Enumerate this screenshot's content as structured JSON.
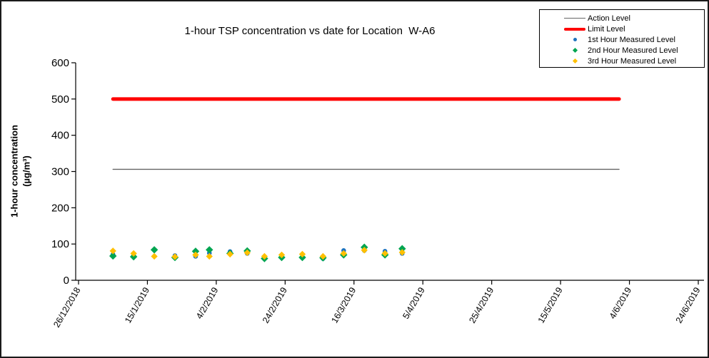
{
  "chart_data": {
    "type": "scatter",
    "title": "1-hour TSP concentration vs date for Location  W-A6",
    "xlabel": "",
    "ylabel": "1-hour concentration (µg/m³)",
    "ylabel_line1": "1-hour concentration",
    "ylabel_line2": "(µg/m³)",
    "ylim": [
      0,
      600
    ],
    "y_ticks": [
      0,
      100,
      200,
      300,
      400,
      500,
      600
    ],
    "grid": "off",
    "legend_position": "top-right",
    "x_axis": {
      "start_date": "26/12/2018",
      "end_date": "24/6/2019",
      "tick_labels": [
        "26/12/2018",
        "15/1/2019",
        "4/2/2019",
        "24/2/2019",
        "16/3/2019",
        "5/4/2019",
        "25/4/2019",
        "15/5/2019",
        "4/6/2019",
        "24/6/2019"
      ],
      "tick_days": [
        0,
        20,
        40,
        60,
        80,
        100,
        120,
        140,
        160,
        180
      ],
      "day_range": [
        0,
        180
      ]
    },
    "reference_lines": [
      {
        "name": "Action Level",
        "value": 306,
        "color": "#666666",
        "stroke_width": 1.3,
        "start_day": 10,
        "end_day": 157
      },
      {
        "name": "Limit Level",
        "value": 500,
        "color": "#FF0000",
        "stroke_width": 5,
        "start_day": 10,
        "end_day": 157
      }
    ],
    "dates": [
      "5/1/2019",
      "11/1/2019",
      "17/1/2019",
      "23/1/2019",
      "29/1/2019",
      "2/2/2019",
      "8/2/2019",
      "13/2/2019",
      "18/2/2019",
      "23/2/2019",
      "1/3/2019",
      "7/3/2019",
      "13/3/2019",
      "19/3/2019",
      "25/3/2019",
      "30/3/2019"
    ],
    "days": [
      10,
      16,
      22,
      28,
      34,
      38,
      44,
      49,
      54,
      59,
      65,
      71,
      77,
      83,
      89,
      94
    ],
    "series": [
      {
        "name": "1st Hour Measured Level",
        "marker": "circle",
        "color": "#1E73BE",
        "size": 6.6,
        "values": [
          71,
          68,
          84,
          68,
          66,
          75,
          79,
          74,
          62,
          64,
          64,
          60,
          82,
          82,
          80,
          74
        ]
      },
      {
        "name": "2nd Hour Measured Level",
        "marker": "diamond",
        "color": "#00A551",
        "size": 7.4,
        "values": [
          67,
          65,
          84,
          63,
          80,
          84,
          74,
          81,
          60,
          63,
          63,
          62,
          70,
          91,
          70,
          87
        ]
      },
      {
        "name": "3rd Hour Measured Level",
        "marker": "diamond",
        "color": "#FFC000",
        "size": 6.6,
        "values": [
          81,
          74,
          66,
          65,
          70,
          66,
          72,
          76,
          66,
          70,
          72,
          66,
          74,
          83,
          74,
          77
        ]
      }
    ]
  },
  "legend": {
    "items": [
      {
        "label": "Action Level",
        "sample": "line",
        "color": "#666666"
      },
      {
        "label": "Limit Level",
        "sample": "thick-line",
        "color": "#FF0000"
      },
      {
        "label": "1st Hour Measured Level",
        "sample": "circle",
        "color": "#1E73BE"
      },
      {
        "label": "2nd Hour Measured Level",
        "sample": "diamond",
        "color": "#00A551"
      },
      {
        "label": "3rd Hour Measured Level",
        "sample": "diamond",
        "color": "#FFC000"
      }
    ]
  },
  "colors": {
    "axis": "#000000",
    "background": "#ffffff",
    "limit_level": "#FF0000",
    "action_level": "#666666",
    "series_1st_hour": "#1E73BE",
    "series_2nd_hour": "#00A551",
    "series_3rd_hour": "#FFC000"
  }
}
